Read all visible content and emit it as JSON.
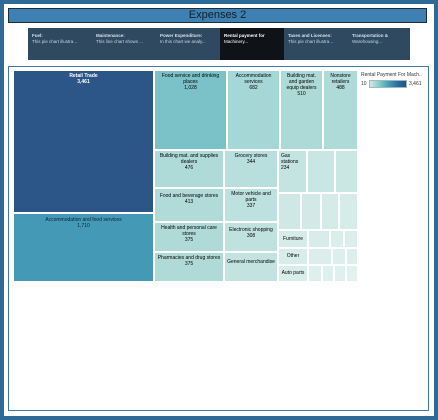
{
  "dashboard": {
    "title": "Expenses 2"
  },
  "tabs": [
    {
      "title": "Fuel:",
      "subtitle": "This pie chart illustra..."
    },
    {
      "title": "Maintenance:",
      "subtitle": "This line chart shows ..."
    },
    {
      "title": "Power Expenditure:",
      "subtitle": "In this chart we analy..."
    },
    {
      "title": "Rental payment for",
      "subtitle": "Machinery..."
    },
    {
      "title": "Taxes and Licenses:",
      "subtitle": "This pie chart illustra..."
    },
    {
      "title": "Transportation &",
      "subtitle": "Warehousing..."
    }
  ],
  "active_tab": 3,
  "legend": {
    "title": "Rental Payment For Mach..",
    "min": "10",
    "max": "3,461"
  },
  "colors": {
    "background": "#2e6a95",
    "title_bar": "#3f80b3",
    "tab_bar": "#2f4a60",
    "active_tab": "#0f1216"
  },
  "chart_data": {
    "type": "treemap",
    "measure": "Rental Payment For Mach..",
    "items": [
      {
        "label": "Retail Trade",
        "value": 3461
      },
      {
        "label": "Accommodation and food services",
        "value": 1710
      },
      {
        "label": "Food service and drinking places",
        "value": 1028
      },
      {
        "label": "Accommodation services",
        "value": 682
      },
      {
        "label": "Building mat. and garden equip dealers",
        "value": 510
      },
      {
        "label": "Nonstore retailers",
        "value": 488
      },
      {
        "label": "Building mat. and supplies dealers",
        "value": 476
      },
      {
        "label": "Grocery stores",
        "value": 344
      },
      {
        "label": "Gas stations",
        "value": 234
      },
      {
        "label": "Food and beverage stores",
        "value": 413
      },
      {
        "label": "Motor vehicle and parts",
        "value": 337
      },
      {
        "label": "Health and personal care stores",
        "value": 375
      },
      {
        "label": "Electronic shopping",
        "value": 308
      },
      {
        "label": "Pharmacies and drug stores",
        "value": 375
      },
      {
        "label": "General merchandise",
        "value": null
      },
      {
        "label": "Furniture",
        "value": null
      },
      {
        "label": "Other",
        "value": null
      },
      {
        "label": "Auto parts",
        "value": null
      }
    ]
  }
}
